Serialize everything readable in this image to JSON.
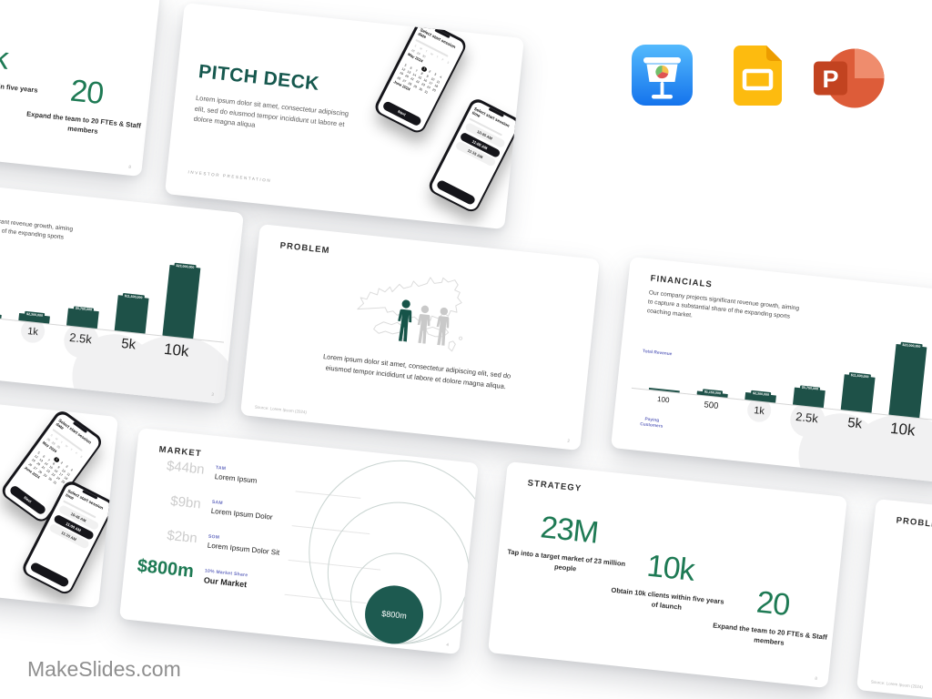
{
  "brand": "MakeSlides.com",
  "colors": {
    "accent_green": "#1E7A54",
    "accent_teal": "#16584E",
    "accent_purple": "#666CC0",
    "bar_teal": "#1E5148",
    "bubble_teal": "#1D5A50"
  },
  "format_icons": [
    {
      "name": "keynote",
      "label": "Apple Keynote"
    },
    {
      "name": "google-slides",
      "label": "Google Slides"
    },
    {
      "name": "powerpoint",
      "label": "Microsoft PowerPoint"
    }
  ],
  "cover": {
    "title": "PITCH DECK",
    "body": "Lorem ipsum dolor sit amet, consectetur adipiscing elit, sed do eiusmod tempor incididunt ut labore et dolore magna aliqua",
    "footer": "INVESTOR  PRESENTATION",
    "phone_date": {
      "title": "Select start session date",
      "weekdays": [
        "S",
        "M",
        "T",
        "W",
        "T",
        "F",
        "S"
      ],
      "prev_days": [
        "28",
        "29",
        "30"
      ],
      "month": "May 2024",
      "start_offset": 3,
      "days_in_month": 31,
      "selected_day": 1,
      "next_month": "June 2024",
      "button": "Next"
    },
    "phone_time": {
      "title": "Select start session time",
      "options": [
        "10:45 AM",
        "11:00 AM",
        "11:15 AM"
      ],
      "selected_index": 1
    }
  },
  "problem": {
    "title": "PROBLEM",
    "body": "Lorem ipsum dolor sit amet, consectetur adipiscing elit, sed do eiusmod tempor incididunt ut labore et dolore magna aliqua.",
    "source": "Source: Lorem Ipsum (2024)",
    "page": "2"
  },
  "financials": {
    "title": "FINANCIALS",
    "body": "Our company projects significant revenue growth, aiming to capture a substantial share of the expanding sports coaching market.",
    "y_label": "Total Revenue",
    "x_label": "Paying Customers",
    "page": "3"
  },
  "market": {
    "title": "MARKET",
    "page": "4"
  },
  "strategy": {
    "title": "STRATEGY",
    "page": "8",
    "stats": [
      {
        "value": "23M",
        "desc": "Tap into a target market of 23 million people"
      },
      {
        "value": "10k",
        "desc": "Obtain 10k clients within five years of launch"
      },
      {
        "value": "20",
        "desc": "Expand the team to 20 FTEs & Staff members"
      }
    ]
  },
  "chart_data": [
    {
      "id": "financials-revenue",
      "type": "bar",
      "title": "FINANCIALS",
      "categories": [
        "100",
        "500",
        "1k",
        "2.5k",
        "5k",
        "10k"
      ],
      "values": [
        230000,
        1150000,
        2300000,
        5750000,
        11500000,
        23000000
      ],
      "bar_labels": [
        "",
        "$1,150,000",
        "$2,300,000",
        "$5,750,000",
        "$11,500,000",
        "$23,000,000"
      ],
      "series_label": "Total Revenue",
      "xlabel": "Paying Customers",
      "ylim": [
        0,
        23000000
      ],
      "grid": false,
      "bar_color": "#1E5148"
    },
    {
      "id": "market-size",
      "type": "concentric-circles",
      "rings": [
        {
          "tag": "TAM",
          "label": "Lorem Ipsum",
          "value": "$44bn"
        },
        {
          "tag": "SAM",
          "label": "Lorem Ipsum Dolor",
          "value": "$9bn"
        },
        {
          "tag": "SOM",
          "label": "Lorem Ipsum Dolor Sit",
          "value": "$2bn"
        },
        {
          "tag": "10% Market Share",
          "label": "Our Market",
          "value": "$800m",
          "highlight": true
        }
      ]
    }
  ]
}
